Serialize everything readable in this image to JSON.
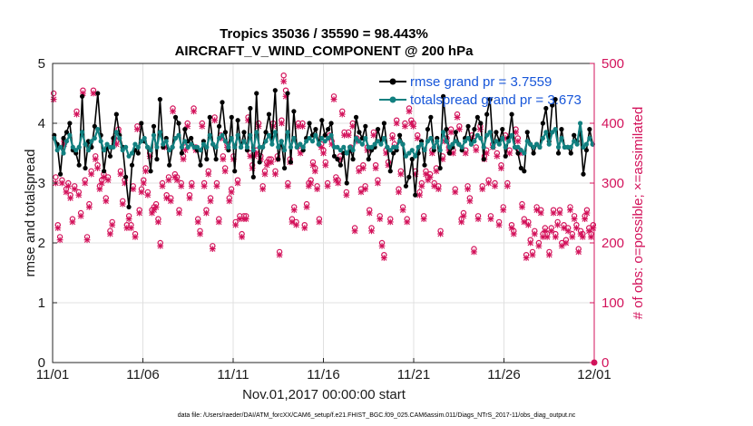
{
  "chart_data": {
    "type": "line",
    "title_line1": "Tropics 35036 / 35590 = 98.443%",
    "title_line2": "AIRCRAFT_V_WIND_COMPONENT @ 200 hPa",
    "xlabel": "Nov.01,2017 00:00:00 start",
    "ylabel_left": "rmse and totalspread",
    "ylabel_right": "# of obs: o=possible; ×=assimilated",
    "footer": "data file: /Users/raeder/DAI/ATM_forcXX/CAM6_setup/f.e21.FHIST_BGC.f09_025.CAM6assim.011/Diags_NTrS_2017-11/obs_diag_output.nc",
    "x_ticks": [
      "11/01",
      "11/06",
      "11/11",
      "11/16",
      "11/21",
      "11/26",
      "12/01"
    ],
    "y_left_ticks": [
      "0",
      "1",
      "2",
      "3",
      "4",
      "5"
    ],
    "y_right_ticks": [
      "0",
      "100",
      "200",
      "300",
      "400",
      "500"
    ],
    "ylim_left": [
      0,
      5
    ],
    "ylim_right": [
      0,
      500
    ],
    "xlim": [
      0,
      30
    ],
    "grid": true,
    "legend": {
      "position": "top-right",
      "entries": [
        "rmse grand pr = 3.7559",
        "totalspread grand pr = 3.673"
      ]
    },
    "colors": {
      "rmse": "#000000",
      "totalspread": "#128080",
      "obs": "#d3135b",
      "legend_text": "#1756d9"
    },
    "series": [
      {
        "name": "rmse",
        "axis": "left",
        "values": [
          3.8,
          3.65,
          3.15,
          3.75,
          3.85,
          4.0,
          3.55,
          3.5,
          3.3,
          4.45,
          3.25,
          3.7,
          3.6,
          3.95,
          4.5,
          3.8,
          3.2,
          3.6,
          3.45,
          3.75,
          4.15,
          3.8,
          3.6,
          3.1,
          2.6,
          3.3,
          3.55,
          3.5,
          4.0,
          3.7,
          3.6,
          3.2,
          3.95,
          3.4,
          4.4,
          3.6,
          3.75,
          3.3,
          3.6,
          4.1,
          4.0,
          3.5,
          3.9,
          3.7,
          3.75,
          3.6,
          3.55,
          3.3,
          3.7,
          3.4,
          4.1,
          3.65,
          3.4,
          3.95,
          4.35,
          3.85,
          3.55,
          4.1,
          3.2,
          4.05,
          3.6,
          3.85,
          3.55,
          4.25,
          3.1,
          4.5,
          3.35,
          3.6,
          3.85,
          4.15,
          3.75,
          4.55,
          3.4,
          3.7,
          3.25,
          4.5,
          3.35,
          4.2,
          3.6,
          3.65,
          3.55,
          3.75,
          4.0,
          3.8,
          3.9,
          3.65,
          4.05,
          3.8,
          3.9,
          4.0,
          3.45,
          3.4,
          3.3,
          3.5,
          3.0,
          3.6,
          3.4,
          4.1,
          3.85,
          3.75,
          3.95,
          3.4,
          3.55,
          3.6,
          3.9,
          3.7,
          4.0,
          3.6,
          3.2,
          3.5,
          3.55,
          3.8,
          3.65,
          2.95,
          3.1,
          3.4,
          2.8,
          3.5,
          3.7,
          3.3,
          3.9,
          4.1,
          3.55,
          3.75,
          3.25,
          4.45,
          3.9,
          3.5,
          3.6,
          3.85,
          3.65,
          3.55,
          3.75,
          3.95,
          3.65,
          3.9,
          4.1,
          4.0,
          3.4,
          4.15,
          4.4,
          3.6,
          3.85,
          3.7,
          3.9,
          3.45,
          3.75,
          4.15,
          3.6,
          3.5,
          3.25,
          3.2,
          3.85,
          3.65,
          3.5,
          3.65,
          3.6,
          4.0,
          4.25,
          3.7,
          4.3,
          4.4,
          3.5,
          3.9,
          3.6,
          3.6,
          3.5,
          3.8,
          3.7,
          3.85,
          3.15,
          3.55,
          3.9,
          3.65
        ]
      },
      {
        "name": "totalspread",
        "axis": "left",
        "values": [
          3.75,
          3.55,
          3.6,
          3.5,
          3.7,
          3.8,
          3.6,
          3.55,
          3.6,
          3.85,
          3.65,
          3.55,
          3.7,
          3.75,
          3.9,
          3.7,
          3.55,
          3.65,
          3.6,
          3.6,
          3.85,
          3.75,
          3.55,
          3.6,
          3.45,
          3.5,
          3.65,
          3.6,
          3.7,
          3.75,
          3.6,
          3.55,
          3.8,
          3.6,
          3.85,
          3.65,
          3.7,
          3.55,
          3.6,
          3.75,
          3.8,
          3.6,
          3.7,
          3.6,
          3.65,
          3.6,
          3.6,
          3.55,
          3.65,
          3.6,
          3.8,
          3.65,
          3.6,
          3.75,
          3.8,
          3.7,
          3.6,
          3.75,
          3.6,
          3.8,
          3.6,
          3.7,
          3.6,
          3.8,
          3.55,
          3.85,
          3.6,
          3.6,
          3.7,
          3.8,
          3.65,
          3.85,
          3.6,
          3.7,
          3.55,
          3.85,
          3.6,
          3.75,
          3.6,
          3.65,
          3.6,
          3.7,
          3.75,
          3.7,
          3.8,
          3.65,
          3.75,
          3.7,
          3.75,
          3.8,
          3.6,
          3.6,
          3.55,
          3.6,
          3.5,
          3.6,
          3.55,
          3.75,
          3.7,
          3.65,
          3.75,
          3.6,
          3.6,
          3.65,
          3.7,
          3.65,
          3.75,
          3.6,
          3.55,
          3.6,
          3.6,
          3.7,
          3.65,
          3.45,
          3.5,
          3.55,
          3.45,
          3.6,
          3.65,
          3.55,
          3.7,
          3.75,
          3.6,
          3.7,
          3.55,
          3.85,
          3.7,
          3.6,
          3.65,
          3.7,
          3.65,
          3.6,
          3.7,
          3.75,
          3.65,
          3.7,
          3.8,
          3.75,
          3.6,
          3.8,
          3.85,
          3.6,
          3.7,
          3.65,
          3.75,
          3.6,
          3.7,
          3.8,
          3.6,
          3.6,
          3.55,
          3.5,
          3.7,
          3.65,
          3.6,
          3.65,
          3.6,
          3.75,
          3.85,
          3.65,
          3.85,
          3.9,
          3.6,
          3.75,
          3.6,
          3.6,
          3.6,
          3.7,
          3.65,
          4.0,
          3.6,
          3.65,
          3.75,
          3.65
        ]
      },
      {
        "name": "obs_possible",
        "axis": "right",
        "values": [
          450,
          310,
          230,
          210,
          305,
          370,
          290,
          300,
          280,
          240,
          295,
          420,
          285,
          250,
          455,
          305,
          210,
          265,
          320,
          455,
          345,
          330,
          295,
          305,
          315,
          275,
          310,
          220,
          235,
          375,
          370,
          390,
          320,
          270,
          305,
          230,
          245,
          230,
          295,
          215,
          395,
          255,
          290,
          305,
          325,
          285,
          350,
          255,
          260,
          265,
          240,
          200,
          300,
          365,
          280,
          310,
          275,
          425,
          315,
          310,
          255,
          300,
          345,
          360,
          400,
          280,
          300,
          425,
          360,
          240,
          220,
          400,
          300,
          255,
          320,
          275,
          195,
          410,
          300,
          240,
          380,
          345,
          325,
          365,
          275,
          290,
          345,
          235,
          305,
          245,
          215,
          245,
          245,
          410,
          350,
          330,
          350,
          355,
          400,
          345,
          295,
          320,
          335,
          340,
          340,
          400,
          320,
          345,
          185,
          405,
          480,
          455,
          300,
          340,
          240,
          260,
          235,
          400,
          355,
          400,
          230,
          265,
          300,
          305,
          335,
          325,
          295,
          240,
          365,
          355,
          335,
          300,
          380,
          370,
          445,
          310,
          305,
          345,
          420,
          385,
          285,
          385,
          360,
          400,
          225,
          375,
          325,
          290,
          330,
          295,
          360,
          255,
          225,
          385,
          330,
          305,
          245,
          200,
          180,
          355,
          335,
          240,
          380,
          365,
          405,
          290,
          320,
          260,
          400,
          240,
          425,
          405,
          400,
          320,
          380,
          285,
          300,
          245,
          320,
          310,
          315,
          355,
          300,
          325,
          295,
          220,
          345,
          375,
          375,
          360,
          390,
          355,
          290,
          415,
          395,
          240,
          250,
          355,
          295,
          275,
          380,
          190,
          360,
          245,
          395,
          295,
          345,
          355,
          305,
          245,
          365,
          300,
          350,
          235,
          330,
          260,
          380,
          300,
          355,
          230,
          220,
          390,
          375,
          355,
          265,
          240,
          180,
          235,
          205,
          185,
          220,
          260,
          200,
          255,
          215,
          225,
          215,
          185,
          225,
          255,
          215,
          235,
          255,
          200,
          230,
          205,
          225,
          260,
          215,
          245,
          230,
          190,
          220,
          215,
          245,
          255,
          225,
          215,
          230
        ]
      },
      {
        "name": "obs_assimilated",
        "axis": "right",
        "values": [
          440,
          300,
          225,
          205,
          300,
          365,
          285,
          295,
          275,
          235,
          290,
          415,
          280,
          245,
          450,
          300,
          205,
          260,
          315,
          450,
          340,
          325,
          290,
          300,
          310,
          270,
          305,
          215,
          230,
          370,
          365,
          385,
          315,
          265,
          300,
          225,
          240,
          225,
          290,
          210,
          390,
          250,
          285,
          300,
          320,
          280,
          345,
          250,
          255,
          260,
          235,
          195,
          295,
          360,
          275,
          305,
          270,
          420,
          310,
          305,
          250,
          295,
          340,
          355,
          395,
          275,
          295,
          420,
          355,
          235,
          215,
          395,
          295,
          250,
          315,
          270,
          190,
          405,
          295,
          235,
          375,
          340,
          320,
          360,
          270,
          285,
          340,
          230,
          300,
          240,
          210,
          240,
          240,
          405,
          345,
          325,
          345,
          350,
          395,
          340,
          290,
          315,
          330,
          335,
          335,
          395,
          315,
          340,
          180,
          400,
          470,
          445,
          295,
          335,
          235,
          255,
          230,
          395,
          350,
          395,
          225,
          260,
          295,
          300,
          330,
          320,
          290,
          235,
          360,
          350,
          330,
          295,
          375,
          365,
          440,
          305,
          300,
          340,
          415,
          380,
          280,
          380,
          355,
          395,
          220,
          370,
          320,
          285,
          325,
          290,
          355,
          250,
          220,
          380,
          325,
          300,
          240,
          195,
          175,
          350,
          330,
          235,
          375,
          360,
          400,
          285,
          315,
          255,
          395,
          235,
          420,
          400,
          395,
          315,
          375,
          280,
          295,
          240,
          315,
          305,
          310,
          350,
          295,
          320,
          290,
          215,
          340,
          370,
          370,
          355,
          385,
          350,
          285,
          410,
          390,
          235,
          245,
          350,
          290,
          270,
          375,
          185,
          355,
          240,
          390,
          290,
          340,
          350,
          300,
          240,
          360,
          295,
          345,
          230,
          325,
          255,
          375,
          295,
          350,
          225,
          215,
          385,
          370,
          350,
          260,
          235,
          175,
          230,
          200,
          180,
          215,
          255,
          195,
          250,
          210,
          220,
          210,
          180,
          220,
          250,
          210,
          230,
          250,
          195,
          225,
          200,
          220,
          255,
          210,
          240,
          225,
          185,
          215,
          210,
          240,
          250,
          220,
          210,
          225
        ]
      }
    ]
  }
}
